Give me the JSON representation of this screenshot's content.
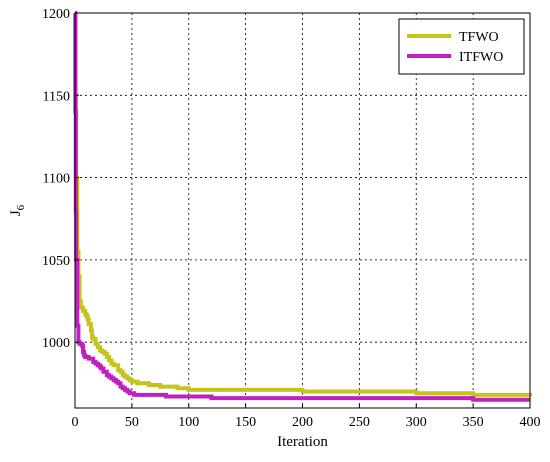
{
  "chart_data": {
    "type": "line",
    "title": "",
    "xlabel": "Iteration",
    "ylabel": "J",
    "ylabel_subscript": "6",
    "xlim": [
      0,
      400
    ],
    "ylim": [
      960,
      1200
    ],
    "xticks": [
      0,
      50,
      100,
      150,
      200,
      250,
      300,
      350,
      400
    ],
    "yticks": [
      1000,
      1050,
      1100,
      1150,
      1200
    ],
    "grid": true,
    "legend_position": "top-right",
    "series": [
      {
        "name": "TFWO",
        "color": "#c4c41a",
        "points": [
          [
            0,
            1200
          ],
          [
            0.5,
            1150
          ],
          [
            1,
            1100
          ],
          [
            2,
            1055
          ],
          [
            3,
            1040
          ],
          [
            4,
            1025
          ],
          [
            5,
            1021
          ],
          [
            6,
            1021
          ],
          [
            7,
            1019
          ],
          [
            8,
            1019
          ],
          [
            9,
            1017
          ],
          [
            10,
            1016
          ],
          [
            11,
            1014
          ],
          [
            12,
            1011
          ],
          [
            13,
            1011
          ],
          [
            14,
            1007
          ],
          [
            15,
            1003
          ],
          [
            16,
            1002
          ],
          [
            18,
            999
          ],
          [
            20,
            997
          ],
          [
            22,
            995
          ],
          [
            24,
            994
          ],
          [
            26,
            993
          ],
          [
            28,
            991
          ],
          [
            30,
            989
          ],
          [
            32,
            987
          ],
          [
            34,
            986
          ],
          [
            36,
            986
          ],
          [
            38,
            983
          ],
          [
            40,
            982
          ],
          [
            42,
            980
          ],
          [
            44,
            979
          ],
          [
            46,
            978
          ],
          [
            48,
            977
          ],
          [
            50,
            976
          ],
          [
            55,
            975
          ],
          [
            60,
            975
          ],
          [
            65,
            974
          ],
          [
            70,
            974
          ],
          [
            75,
            973
          ],
          [
            80,
            973
          ],
          [
            90,
            972
          ],
          [
            100,
            971
          ],
          [
            150,
            971
          ],
          [
            200,
            970
          ],
          [
            250,
            970
          ],
          [
            300,
            969
          ],
          [
            350,
            968
          ],
          [
            400,
            967
          ]
        ]
      },
      {
        "name": "ITFWO",
        "color": "#c020c0",
        "points": [
          [
            0,
            1200
          ],
          [
            0.3,
            1140
          ],
          [
            0.7,
            1080
          ],
          [
            1,
            1050
          ],
          [
            2,
            1010
          ],
          [
            3,
            1000
          ],
          [
            4,
            999
          ],
          [
            5,
            999
          ],
          [
            6,
            998
          ],
          [
            7,
            994
          ],
          [
            8,
            992
          ],
          [
            9,
            991
          ],
          [
            10,
            991
          ],
          [
            12,
            990
          ],
          [
            15,
            990
          ],
          [
            16,
            988
          ],
          [
            18,
            987
          ],
          [
            20,
            986
          ],
          [
            22,
            985
          ],
          [
            23,
            984
          ],
          [
            25,
            982
          ],
          [
            27,
            982
          ],
          [
            28,
            980
          ],
          [
            30,
            979
          ],
          [
            32,
            978
          ],
          [
            34,
            977
          ],
          [
            36,
            976
          ],
          [
            38,
            975
          ],
          [
            40,
            973
          ],
          [
            42,
            972
          ],
          [
            44,
            971
          ],
          [
            46,
            970
          ],
          [
            48,
            969
          ],
          [
            52,
            968
          ],
          [
            60,
            968
          ],
          [
            70,
            968
          ],
          [
            80,
            967
          ],
          [
            100,
            967
          ],
          [
            120,
            966
          ],
          [
            150,
            966
          ],
          [
            200,
            966
          ],
          [
            250,
            966
          ],
          [
            300,
            966
          ],
          [
            350,
            965
          ],
          [
            400,
            965
          ]
        ]
      }
    ]
  }
}
